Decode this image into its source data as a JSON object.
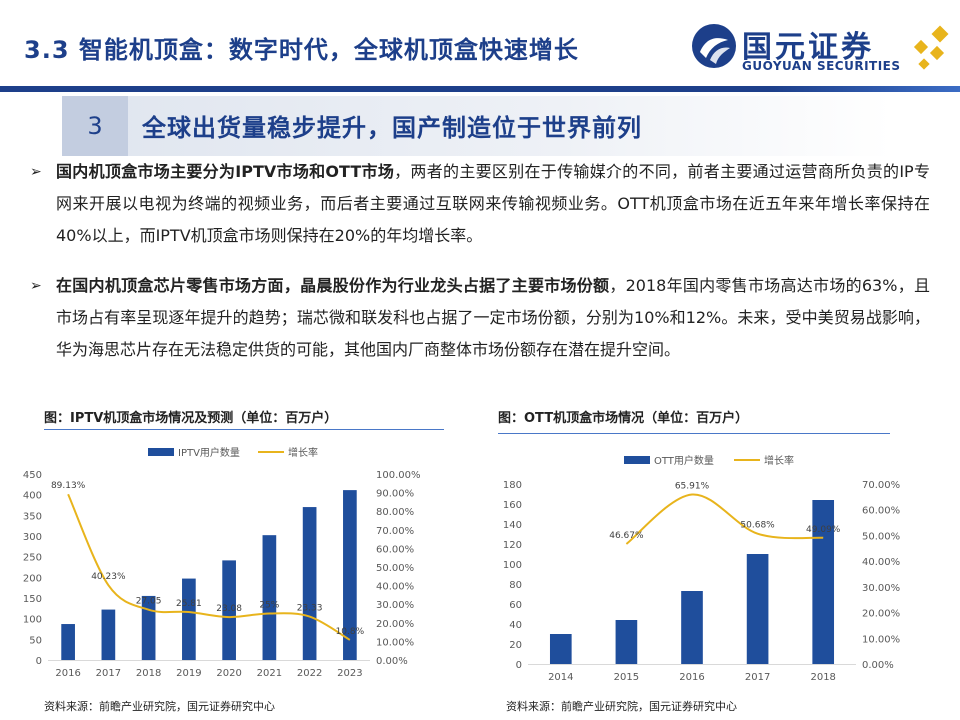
{
  "header": {
    "title": "3.3 智能机顶盒：数字时代，全球机顶盒快速增长",
    "brand_name": "国元证券",
    "brand_en": "GUOYUAN SECURITIES"
  },
  "section": {
    "number": "3",
    "heading": "全球出货量稳步提升，国产制造位于世界前列"
  },
  "bullets": [
    {
      "lead": "国内机顶盒市场主要分为IPTV市场和OTT市场",
      "text": "，两者的主要区别在于传输媒介的不同，前者主要通过运营商所负责的IP专网来开展以电视为终端的视频业务，而后者主要通过互联网来传输视频业务。OTT机顶盒市场在近五年来年增长率保持在40%以上，而IPTV机顶盒市场则保持在20%的年均增长率。"
    },
    {
      "lead": "在国内机顶盒芯片零售市场方面，晶晨股份作为行业龙头占据了主要市场份额",
      "text": "，2018年国内零售市场高达市场的63%，且市场占有率呈现逐年提升的趋势；瑞芯微和联发科也占据了一定市场份额，分别为10%和12%。未来，受中美贸易战影响，华为海思芯片存在无法稳定供货的可能，其他国内厂商整体市场份额存在潜在提升空间。"
    }
  ],
  "left_figure": {
    "caption": "图：IPTV机顶盒市场情况及预测（单位：百万户）",
    "source": "资料来源：前瞻产业研究院，国元证券研究中心"
  },
  "right_figure": {
    "caption": "图：OTT机顶盒市场情况（单位：百万户）",
    "source": "资料来源：前瞻产业研究院，国元证券研究中心"
  },
  "colors": {
    "brand": "#1d3f8a",
    "bar": "#1f4e9c",
    "line": "#e8b41c",
    "axis": "#d9d9d9"
  },
  "chart_data": [
    {
      "type": "bar",
      "categories": [
        "2016",
        "2017",
        "2018",
        "2019",
        "2020",
        "2021",
        "2022",
        "2023"
      ],
      "series": [
        {
          "name": "IPTV用户数量",
          "type": "bar",
          "axis": "left",
          "values": [
            87,
            122,
            155,
            197,
            241,
            302,
            370,
            411
          ]
        },
        {
          "name": "增长率",
          "type": "line",
          "axis": "right",
          "values": [
            89.13,
            40.23,
            27.05,
            25.81,
            23.08,
            25,
            23.33,
            10.8
          ]
        }
      ],
      "data_labels": [
        "89.13%",
        "40.23%",
        "27.05",
        "25.81",
        "23.08",
        "25%",
        "23.33",
        "10.8%"
      ],
      "ylim": [
        0,
        450
      ],
      "yticks": [
        "0",
        "50",
        "100",
        "150",
        "200",
        "250",
        "300",
        "350",
        "400",
        "450"
      ],
      "y2lim": [
        0,
        100
      ],
      "y2ticks": [
        "0.00%",
        "10.00%",
        "20.00%",
        "30.00%",
        "40.00%",
        "50.00%",
        "60.00%",
        "70.00%",
        "80.00%",
        "90.00%",
        "100.00%"
      ],
      "legend_position": "top"
    },
    {
      "type": "bar",
      "categories": [
        "2014",
        "2015",
        "2016",
        "2017",
        "2018"
      ],
      "series": [
        {
          "name": "OTT用户数量",
          "type": "bar",
          "axis": "left",
          "values": [
            30,
            44,
            73,
            110,
            164
          ]
        },
        {
          "name": "增长率",
          "type": "line",
          "axis": "right",
          "values": [
            null,
            46.67,
            65.91,
            50.68,
            49.09
          ]
        }
      ],
      "data_labels": [
        "",
        "46.67%",
        "65.91%",
        "50.68%",
        "49.09%"
      ],
      "ylim": [
        0,
        180
      ],
      "yticks": [
        "0",
        "20",
        "40",
        "60",
        "80",
        "100",
        "120",
        "140",
        "160",
        "180"
      ],
      "y2lim": [
        0,
        70
      ],
      "y2ticks": [
        "0.00%",
        "10.00%",
        "20.00%",
        "30.00%",
        "40.00%",
        "50.00%",
        "60.00%",
        "70.00%"
      ],
      "legend_position": "top"
    }
  ]
}
